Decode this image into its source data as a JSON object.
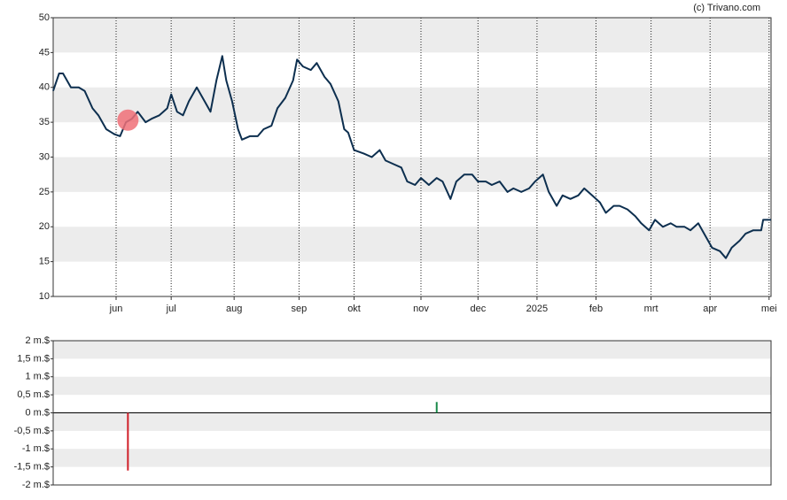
{
  "chart_data": [
    {
      "type": "line",
      "source": "(c) Trivano.com",
      "x": [
        0,
        3,
        5,
        9,
        13,
        16,
        20,
        23,
        27,
        31,
        34,
        37,
        40,
        43,
        47,
        50,
        54,
        58,
        60,
        63,
        66,
        69,
        73,
        77,
        80,
        83,
        86,
        88,
        91,
        94,
        96,
        100,
        104,
        107,
        111,
        114,
        118,
        122,
        124,
        127,
        131,
        134,
        138,
        141,
        145,
        148,
        150,
        153,
        158,
        162,
        166,
        169,
        173,
        177,
        180,
        184,
        187,
        191,
        195,
        198,
        202,
        205,
        209,
        213,
        216,
        220,
        223,
        227,
        231,
        234,
        238,
        242,
        245,
        249,
        252,
        256,
        259,
        263,
        267,
        270,
        274,
        278,
        281,
        285,
        288,
        292,
        296,
        299,
        303,
        306,
        310,
        314,
        317,
        321,
        324,
        328,
        332,
        335,
        339,
        342,
        345,
        349,
        352,
        356,
        360,
        361,
        365
      ],
      "values": [
        39.5,
        42,
        42,
        40,
        40,
        39.5,
        37,
        36,
        34,
        33.3,
        33,
        35,
        35.5,
        36.5,
        35,
        35.5,
        36,
        37,
        39,
        36.5,
        36,
        38,
        40,
        38,
        36.5,
        41,
        44.5,
        41,
        38,
        34,
        32.5,
        33,
        33,
        34,
        34.5,
        37,
        38.5,
        41,
        44,
        43,
        42.5,
        43.5,
        41.5,
        40.5,
        38,
        34,
        33.5,
        31,
        30.5,
        30,
        31,
        29.5,
        29,
        28.5,
        26.5,
        26,
        27,
        26,
        27,
        26.5,
        24,
        26.5,
        27.5,
        27.5,
        26.5,
        26.5,
        26,
        26.5,
        25,
        25.5,
        25,
        25.5,
        26.5,
        27.5,
        25,
        23,
        24.5,
        24,
        24.5,
        25.5,
        24.5,
        23.5,
        22,
        23,
        23,
        22.5,
        21.5,
        20.5,
        19.5,
        21,
        20,
        20.5,
        20,
        20,
        19.5,
        20.5,
        18.5,
        17,
        16.5,
        15.5,
        17,
        18,
        19,
        19.5,
        19.5,
        21,
        21
      ],
      "color": "#0d2f4f",
      "highlight": {
        "x": 38,
        "value": 35.3,
        "color": "#f07078"
      },
      "xlim": [
        0,
        365
      ],
      "xticks": [
        {
          "value": 32,
          "label": "jun"
        },
        {
          "value": 60,
          "label": "jul"
        },
        {
          "value": 92,
          "label": "aug"
        },
        {
          "value": 125,
          "label": "sep"
        },
        {
          "value": 153,
          "label": "okt"
        },
        {
          "value": 187,
          "label": "nov"
        },
        {
          "value": 216,
          "label": "dec"
        },
        {
          "value": 246,
          "label": "2025"
        },
        {
          "value": 276,
          "label": "feb"
        },
        {
          "value": 304,
          "label": "mrt"
        },
        {
          "value": 334,
          "label": "apr"
        },
        {
          "value": 364,
          "label": "mei"
        }
      ],
      "ylim": [
        10,
        50
      ],
      "yticks": [
        10,
        15,
        20,
        25,
        30,
        35,
        40,
        45,
        50
      ],
      "grid": "bands"
    },
    {
      "type": "bar",
      "x": [
        38,
        195
      ],
      "values": [
        -1.6,
        0.3
      ],
      "colors": [
        "#d0202a",
        "#1a8a4a"
      ],
      "xlim": [
        0,
        365
      ],
      "ylim": [
        -2,
        2
      ],
      "yticks": [
        {
          "value": -2,
          "label": "-2 m.$"
        },
        {
          "value": -1.5,
          "label": "-1,5 m.$"
        },
        {
          "value": -1,
          "label": "-1 m.$"
        },
        {
          "value": -0.5,
          "label": "-0,5 m.$"
        },
        {
          "value": 0,
          "label": "0 m.$"
        },
        {
          "value": 0.5,
          "label": "0,5 m.$"
        },
        {
          "value": 1,
          "label": "1 m.$"
        },
        {
          "value": 1.5,
          "label": "1,5 m.$"
        },
        {
          "value": 2,
          "label": "2 m.$"
        }
      ],
      "grid": "bands"
    }
  ]
}
